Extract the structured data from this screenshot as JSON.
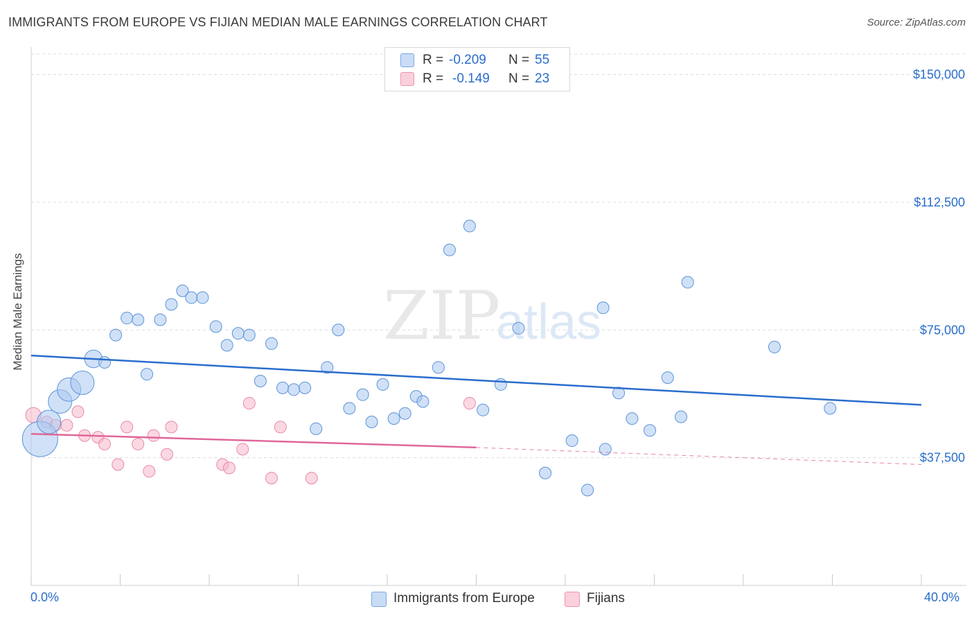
{
  "header": {
    "title": "IMMIGRANTS FROM EUROPE VS FIJIAN MEDIAN MALE EARNINGS CORRELATION CHART",
    "source": "Source: ZipAtlas.com"
  },
  "watermark": {
    "part1": "ZIP",
    "part2": "atlas"
  },
  "legend": {
    "rows": [
      {
        "r_label": "R =",
        "r_value": "-0.209",
        "n_label": "N =",
        "n_value": "55",
        "color": "#a9c8f0"
      },
      {
        "r_label": "R =",
        "r_value": "-0.149",
        "n_label": "N =",
        "n_value": "23",
        "color": "#f6b8cb"
      }
    ]
  },
  "bottom_legend": {
    "items": [
      {
        "label": "Immigrants from Europe",
        "color": "#a9c8f0"
      },
      {
        "label": "Fijians",
        "color": "#f6b8cb"
      }
    ]
  },
  "chart_data": {
    "type": "scatter",
    "title": "IMMIGRANTS FROM EUROPE VS FIJIAN MEDIAN MALE EARNINGS CORRELATION CHART",
    "xlabel": "",
    "ylabel": "Median Male Earnings",
    "x_tick_labels": [
      "0.0%",
      "40.0%"
    ],
    "y_tick_labels": [
      "$37,500",
      "$75,000",
      "$112,500",
      "$150,000"
    ],
    "y_ticks": [
      37500,
      75000,
      112500,
      150000
    ],
    "xlim": [
      0,
      40
    ],
    "ylim": [
      0,
      156000
    ],
    "grid": true,
    "legend_position": "top-center",
    "colors": {
      "europe_fill": "#a9c8f0",
      "europe_stroke": "#5b93d8",
      "europe_line": "#2a6dcc",
      "fijian_fill": "#f6b8cb",
      "fijian_stroke": "#e98aa8",
      "fijian_line": "#e0679a"
    },
    "series": [
      {
        "name": "Immigrants from Europe",
        "points": [
          {
            "x": 0.4,
            "y": 43000,
            "s": 3
          },
          {
            "x": 0.8,
            "y": 48000,
            "s": 2
          },
          {
            "x": 1.3,
            "y": 54000,
            "s": 2
          },
          {
            "x": 1.7,
            "y": 57500,
            "s": 2
          },
          {
            "x": 2.3,
            "y": 59500,
            "s": 2
          },
          {
            "x": 2.8,
            "y": 66500,
            "s": 1.5
          },
          {
            "x": 3.3,
            "y": 65500,
            "s": 1
          },
          {
            "x": 3.8,
            "y": 73500,
            "s": 1
          },
          {
            "x": 4.3,
            "y": 78500,
            "s": 1
          },
          {
            "x": 4.8,
            "y": 78000,
            "s": 1
          },
          {
            "x": 5.2,
            "y": 62000,
            "s": 1
          },
          {
            "x": 5.8,
            "y": 78000,
            "s": 1
          },
          {
            "x": 6.3,
            "y": 82500,
            "s": 1
          },
          {
            "x": 6.8,
            "y": 86500,
            "s": 1
          },
          {
            "x": 7.2,
            "y": 84500,
            "s": 1
          },
          {
            "x": 7.7,
            "y": 84500,
            "s": 1
          },
          {
            "x": 8.3,
            "y": 76000,
            "s": 1
          },
          {
            "x": 8.8,
            "y": 70500,
            "s": 1
          },
          {
            "x": 9.3,
            "y": 74000,
            "s": 1
          },
          {
            "x": 9.8,
            "y": 73500,
            "s": 1
          },
          {
            "x": 10.3,
            "y": 60000,
            "s": 1
          },
          {
            "x": 10.8,
            "y": 71000,
            "s": 1
          },
          {
            "x": 11.3,
            "y": 58000,
            "s": 1
          },
          {
            "x": 11.8,
            "y": 57500,
            "s": 1
          },
          {
            "x": 12.3,
            "y": 58000,
            "s": 1
          },
          {
            "x": 12.8,
            "y": 46000,
            "s": 1
          },
          {
            "x": 13.3,
            "y": 64000,
            "s": 1
          },
          {
            "x": 13.8,
            "y": 75000,
            "s": 1
          },
          {
            "x": 14.3,
            "y": 52000,
            "s": 1
          },
          {
            "x": 14.9,
            "y": 56000,
            "s": 1
          },
          {
            "x": 15.3,
            "y": 48000,
            "s": 1
          },
          {
            "x": 15.8,
            "y": 59000,
            "s": 1
          },
          {
            "x": 16.3,
            "y": 49000,
            "s": 1
          },
          {
            "x": 16.8,
            "y": 50500,
            "s": 1
          },
          {
            "x": 17.3,
            "y": 55500,
            "s": 1
          },
          {
            "x": 17.6,
            "y": 54000,
            "s": 1
          },
          {
            "x": 18.3,
            "y": 64000,
            "s": 1
          },
          {
            "x": 18.8,
            "y": 98500,
            "s": 1
          },
          {
            "x": 19.7,
            "y": 105500,
            "s": 1
          },
          {
            "x": 20.3,
            "y": 51500,
            "s": 1
          },
          {
            "x": 21.1,
            "y": 59000,
            "s": 1
          },
          {
            "x": 21.9,
            "y": 75500,
            "s": 1
          },
          {
            "x": 23.1,
            "y": 33000,
            "s": 1
          },
          {
            "x": 24.3,
            "y": 42500,
            "s": 1
          },
          {
            "x": 25.0,
            "y": 28000,
            "s": 1
          },
          {
            "x": 25.8,
            "y": 40000,
            "s": 1
          },
          {
            "x": 25.7,
            "y": 81500,
            "s": 1
          },
          {
            "x": 26.4,
            "y": 56500,
            "s": 1
          },
          {
            "x": 27.0,
            "y": 49000,
            "s": 1
          },
          {
            "x": 27.8,
            "y": 45500,
            "s": 1
          },
          {
            "x": 28.6,
            "y": 61000,
            "s": 1
          },
          {
            "x": 29.2,
            "y": 49500,
            "s": 1
          },
          {
            "x": 29.5,
            "y": 89000,
            "s": 1
          },
          {
            "x": 33.4,
            "y": 70000,
            "s": 1
          },
          {
            "x": 35.9,
            "y": 52000,
            "s": 1
          }
        ],
        "trend": {
          "x": [
            0,
            40
          ],
          "y": [
            67500,
            53000
          ]
        }
      },
      {
        "name": "Fijians",
        "points": [
          {
            "x": 0.1,
            "y": 50000,
            "s": 1.3
          },
          {
            "x": 0.7,
            "y": 48000,
            "s": 1
          },
          {
            "x": 1.1,
            "y": 47000,
            "s": 1
          },
          {
            "x": 1.6,
            "y": 47000,
            "s": 1
          },
          {
            "x": 2.1,
            "y": 51000,
            "s": 1
          },
          {
            "x": 2.4,
            "y": 44000,
            "s": 1
          },
          {
            "x": 3.0,
            "y": 43500,
            "s": 1
          },
          {
            "x": 3.3,
            "y": 41500,
            "s": 1
          },
          {
            "x": 3.9,
            "y": 35500,
            "s": 1
          },
          {
            "x": 4.3,
            "y": 46500,
            "s": 1
          },
          {
            "x": 4.8,
            "y": 41500,
            "s": 1
          },
          {
            "x": 5.3,
            "y": 33500,
            "s": 1
          },
          {
            "x": 5.5,
            "y": 44000,
            "s": 1
          },
          {
            "x": 6.1,
            "y": 38500,
            "s": 1
          },
          {
            "x": 6.3,
            "y": 46500,
            "s": 1
          },
          {
            "x": 8.6,
            "y": 35500,
            "s": 1
          },
          {
            "x": 8.9,
            "y": 34500,
            "s": 1
          },
          {
            "x": 9.5,
            "y": 40000,
            "s": 1
          },
          {
            "x": 9.8,
            "y": 53500,
            "s": 1
          },
          {
            "x": 10.8,
            "y": 31500,
            "s": 1
          },
          {
            "x": 11.2,
            "y": 46500,
            "s": 1
          },
          {
            "x": 12.6,
            "y": 31500,
            "s": 1
          },
          {
            "x": 19.7,
            "y": 53500,
            "s": 1
          }
        ],
        "trend": {
          "x": [
            0,
            20
          ],
          "y": [
            44500,
            40500
          ],
          "dashed_to": {
            "x": 40,
            "y": 35500
          }
        }
      }
    ]
  }
}
